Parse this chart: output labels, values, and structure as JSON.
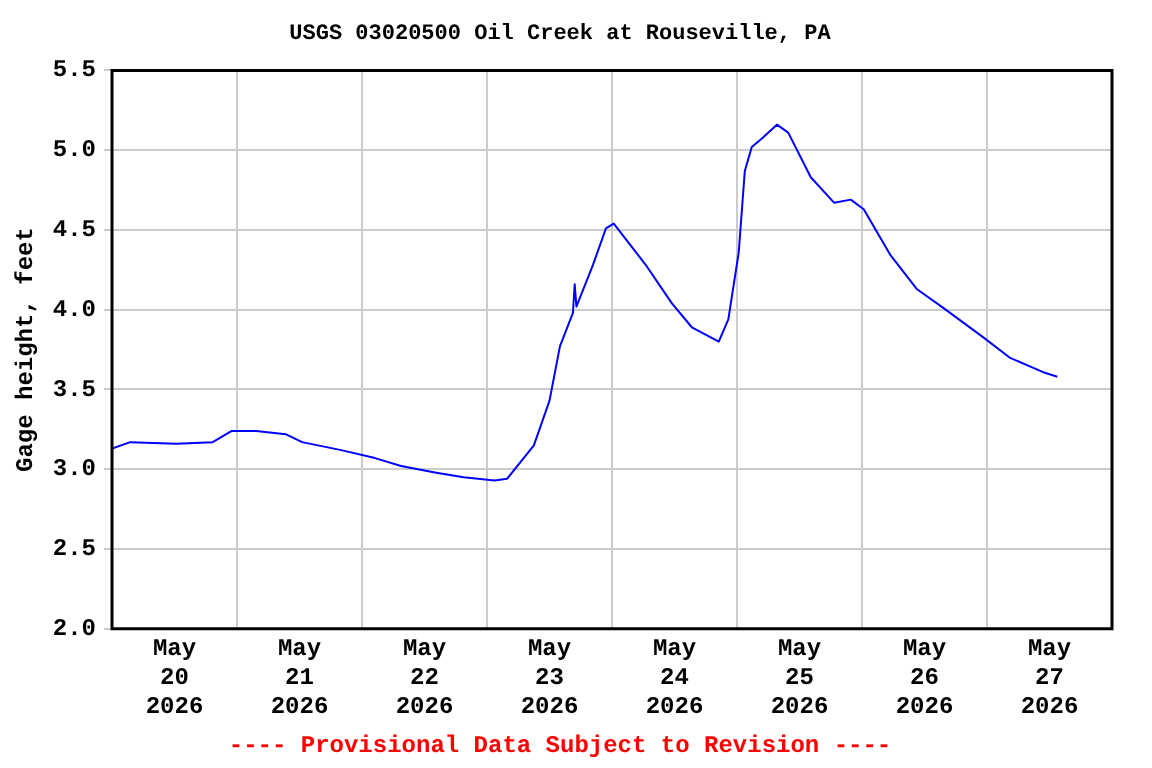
{
  "chart_data": {
    "type": "line",
    "title": "USGS 03020500 Oil Creek at Rouseville, PA",
    "ylabel": "Gage height, feet",
    "annotations": [
      "---- Provisional Data Subject to Revision ----"
    ],
    "x": [
      "2026-05-20T00:00",
      "2026-05-20T03:30",
      "2026-05-20T12:20",
      "2026-05-20T19:20",
      "2026-05-20T23:00",
      "2026-05-21T03:40",
      "2026-05-21T09:20",
      "2026-05-21T12:30",
      "2026-05-21T20:00",
      "2026-05-22T02:30",
      "2026-05-22T07:30",
      "2026-05-22T14:00",
      "2026-05-22T19:30",
      "2026-05-23T01:30",
      "2026-05-23T03:50",
      "2026-05-23T09:00",
      "2026-05-23T12:00",
      "2026-05-23T14:00",
      "2026-05-23T16:30",
      "2026-05-23T16:50",
      "2026-05-23T17:10",
      "2026-05-23T20:20",
      "2026-05-23T22:50",
      "2026-05-24T00:20",
      "2026-05-24T06:30",
      "2026-05-24T11:30",
      "2026-05-24T15:20",
      "2026-05-24T20:30",
      "2026-05-24T22:20",
      "2026-05-25T00:20",
      "2026-05-25T01:30",
      "2026-05-25T02:50",
      "2026-05-25T04:40",
      "2026-05-25T07:40",
      "2026-05-25T09:50",
      "2026-05-25T14:10",
      "2026-05-25T18:40",
      "2026-05-25T21:50",
      "2026-05-26T00:20",
      "2026-05-26T05:30",
      "2026-05-26T10:30",
      "2026-05-26T15:40",
      "2026-05-26T23:10",
      "2026-05-27T04:20",
      "2026-05-27T10:40",
      "2026-05-27T13:30"
    ],
    "series": [
      {
        "color": "#0000ff",
        "values": [
          3.13,
          3.17,
          3.16,
          3.17,
          3.24,
          3.24,
          3.22,
          3.17,
          3.12,
          3.07,
          3.02,
          2.98,
          2.95,
          2.93,
          2.94,
          3.15,
          3.43,
          3.77,
          3.98,
          4.16,
          4.02,
          4.28,
          4.51,
          4.54,
          4.28,
          4.04,
          3.89,
          3.8,
          3.94,
          4.36,
          4.87,
          5.02,
          5.07,
          5.16,
          5.11,
          4.83,
          4.67,
          4.69,
          4.63,
          4.34,
          4.13,
          4.01,
          3.83,
          3.7,
          3.61,
          3.58
        ]
      }
    ],
    "xlim": [
      "2026-05-20T00:00",
      "2026-05-28T00:00"
    ],
    "xticks": [
      {
        "value": "2026-05-20T12:00",
        "label": "May 20 2026"
      },
      {
        "value": "2026-05-21T00:00",
        "label": null
      },
      {
        "value": "2026-05-21T12:00",
        "label": "May 21 2026"
      },
      {
        "value": "2026-05-22T00:00",
        "label": null
      },
      {
        "value": "2026-05-22T12:00",
        "label": "May 22 2026"
      },
      {
        "value": "2026-05-23T00:00",
        "label": null
      },
      {
        "value": "2026-05-23T12:00",
        "label": "May 23 2026"
      },
      {
        "value": "2026-05-24T00:00",
        "label": null
      },
      {
        "value": "2026-05-24T12:00",
        "label": "May 24 2026"
      },
      {
        "value": "2026-05-25T00:00",
        "label": null
      },
      {
        "value": "2026-05-25T12:00",
        "label": "May 25 2026"
      },
      {
        "value": "2026-05-26T00:00",
        "label": null
      },
      {
        "value": "2026-05-26T12:00",
        "label": "May 26 2026"
      },
      {
        "value": "2026-05-27T00:00",
        "label": null
      },
      {
        "value": "2026-05-27T12:00",
        "label": "May 27 2026"
      }
    ],
    "ylim": [
      2.0,
      5.5
    ],
    "yticks": [
      {
        "value": 2.0,
        "label": "2.0"
      },
      {
        "value": 2.5,
        "label": "2.5"
      },
      {
        "value": 3.0,
        "label": "3.0"
      },
      {
        "value": 3.5,
        "label": "3.5"
      },
      {
        "value": 4.0,
        "label": "4.0"
      },
      {
        "value": 4.5,
        "label": "4.5"
      },
      {
        "value": 5.0,
        "label": "5.0"
      },
      {
        "value": 5.5,
        "label": "5.5"
      }
    ],
    "grid": true,
    "legend": false,
    "marker": "none",
    "line_style": "solid"
  }
}
